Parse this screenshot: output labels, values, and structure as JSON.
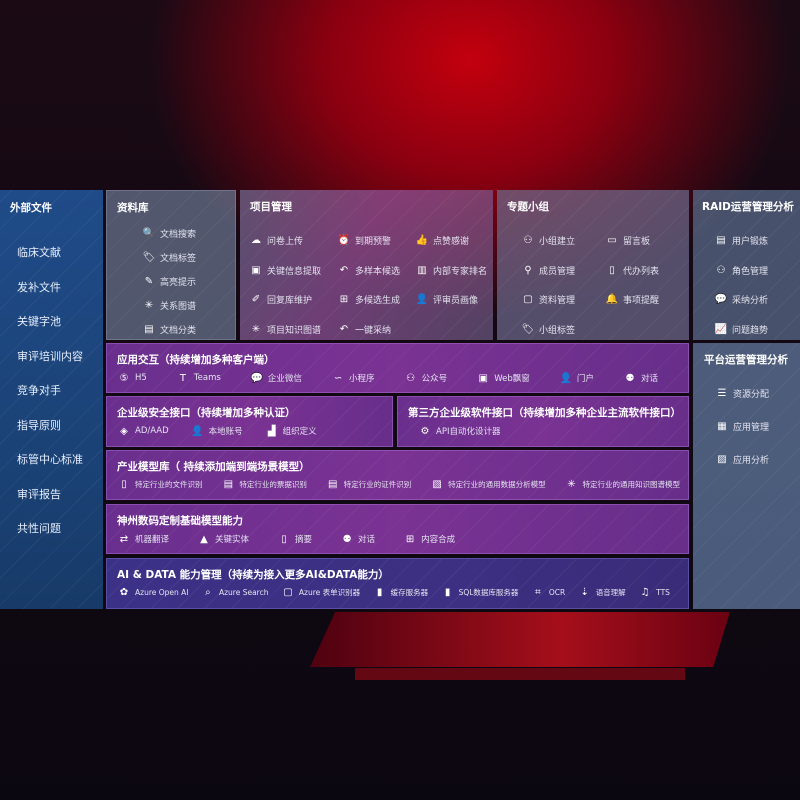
{
  "left": {
    "title": "外部文件",
    "items": [
      "临床文献",
      "发补文件",
      "关键字池",
      "审评培训内容",
      "竞争对手",
      "指导原则",
      "标管中心标准",
      "审评报告",
      "共性问题"
    ]
  },
  "library": {
    "title": "资料库",
    "items": [
      {
        "label": "文档搜索",
        "icon": "doc-search-icon"
      },
      {
        "label": "文档标签",
        "icon": "tag-icon"
      },
      {
        "label": "高亮提示",
        "icon": "pen-icon"
      },
      {
        "label": "关系图谱",
        "icon": "graph-icon"
      },
      {
        "label": "文档分类",
        "icon": "doc-list-icon"
      }
    ]
  },
  "project": {
    "title": "项目管理",
    "items": [
      {
        "label": "问卷上传",
        "icon": "cloud-upload-icon"
      },
      {
        "label": "到期预警",
        "icon": "alarm-icon"
      },
      {
        "label": "点赞感谢",
        "icon": "thumbs-up-icon"
      },
      {
        "label": "关键信息提取",
        "icon": "window-icon"
      },
      {
        "label": "多样本候选",
        "icon": "reply-icon"
      },
      {
        "label": "内部专家排名",
        "icon": "ranking-icon"
      },
      {
        "label": "回复库维护",
        "icon": "edit-icon"
      },
      {
        "label": "多候选生成",
        "icon": "puzzle-icon"
      },
      {
        "label": "评审员画像",
        "icon": "user-icon"
      },
      {
        "label": "项目知识图谱",
        "icon": "graph-icon"
      },
      {
        "label": "一键采纳",
        "icon": "reply-icon"
      }
    ]
  },
  "group": {
    "title": "专题小组",
    "items": [
      {
        "label": "小组建立",
        "icon": "group-icon"
      },
      {
        "label": "留言板",
        "icon": "bbs-icon"
      },
      {
        "label": "成员管理",
        "icon": "user-add-icon"
      },
      {
        "label": "代办列表",
        "icon": "clipboard-icon"
      },
      {
        "label": "资料管理",
        "icon": "folder-icon"
      },
      {
        "label": "事项提醒",
        "icon": "bell-icon"
      },
      {
        "label": "小组标签",
        "icon": "tag-icon"
      }
    ]
  },
  "raid": {
    "title": "RAID运营管理分析",
    "items": [
      {
        "label": "用户锻炼",
        "icon": "id-card-icon"
      },
      {
        "label": "角色管理",
        "icon": "users-icon"
      },
      {
        "label": "采纳分析",
        "icon": "qa-icon"
      },
      {
        "label": "问题趋势",
        "icon": "trend-icon"
      }
    ]
  },
  "platform": {
    "title": "平台运营管理分析",
    "items": [
      {
        "label": "资源分配",
        "icon": "checklist-icon"
      },
      {
        "label": "应用管理",
        "icon": "apps-icon"
      },
      {
        "label": "应用分析",
        "icon": "analytics-icon"
      }
    ]
  },
  "app": {
    "title": "应用交互（持续增加多种客户端）",
    "items": [
      {
        "label": "H5",
        "icon": "html5-icon"
      },
      {
        "label": "Teams",
        "icon": "teams-icon"
      },
      {
        "label": "企业微信",
        "icon": "wechat-icon"
      },
      {
        "label": "小程序",
        "icon": "miniprogram-icon"
      },
      {
        "label": "公众号",
        "icon": "official-account-icon"
      },
      {
        "label": "Web飘窗",
        "icon": "window-icon"
      },
      {
        "label": "门户",
        "icon": "portal-icon"
      },
      {
        "label": "对话",
        "icon": "chat-icon"
      }
    ]
  },
  "security": {
    "title": "企业级安全接口（持续增加多种认证）",
    "items": [
      {
        "label": "AD/AAD",
        "icon": "ad-icon"
      },
      {
        "label": "本地账号",
        "icon": "user-icon"
      },
      {
        "label": "组织定义",
        "icon": "org-icon"
      }
    ]
  },
  "thirdparty": {
    "title": "第三方企业级软件接口（持续增加多种企业主流软件接口）",
    "items": [
      {
        "label": "API自动化设计器",
        "icon": "gear-icon"
      }
    ]
  },
  "industry": {
    "title": "产业模型库（ 持续添加端到端场景模型）",
    "items": [
      {
        "label": "特定行业的文件识别",
        "icon": "file-icon"
      },
      {
        "label": "特定行业的票据识别",
        "icon": "receipt-icon"
      },
      {
        "label": "特定行业的证件识别",
        "icon": "id-card-icon"
      },
      {
        "label": "特定行业的通用数据分析模型",
        "icon": "chart-icon"
      },
      {
        "label": "特定行业的通用知识图谱模型",
        "icon": "graph-icon"
      }
    ]
  },
  "base": {
    "title": "神州数码定制基础模型能力",
    "items": [
      {
        "label": "机器翻译",
        "icon": "translate-icon"
      },
      {
        "label": "关键实体",
        "icon": "entity-icon"
      },
      {
        "label": "摘要",
        "icon": "summary-icon"
      },
      {
        "label": "对话",
        "icon": "chat-icon"
      },
      {
        "label": "内容合成",
        "icon": "puzzle-icon"
      }
    ]
  },
  "aidata": {
    "title": "AI & DATA 能力管理（持续为接入更多AI&DATA能力）",
    "items": [
      {
        "label": "Azure Open AI",
        "icon": "openai-icon"
      },
      {
        "label": "Azure Search",
        "icon": "search-icon"
      },
      {
        "label": "Azure 表单识别器",
        "icon": "form-icon"
      },
      {
        "label": "缓存服务器",
        "icon": "cache-icon"
      },
      {
        "label": "SQL数据库服务器",
        "icon": "database-icon"
      },
      {
        "label": "OCR",
        "icon": "ocr-icon"
      },
      {
        "label": "语音理解",
        "icon": "speech-icon"
      },
      {
        "label": "TTS",
        "icon": "tts-icon"
      }
    ]
  }
}
